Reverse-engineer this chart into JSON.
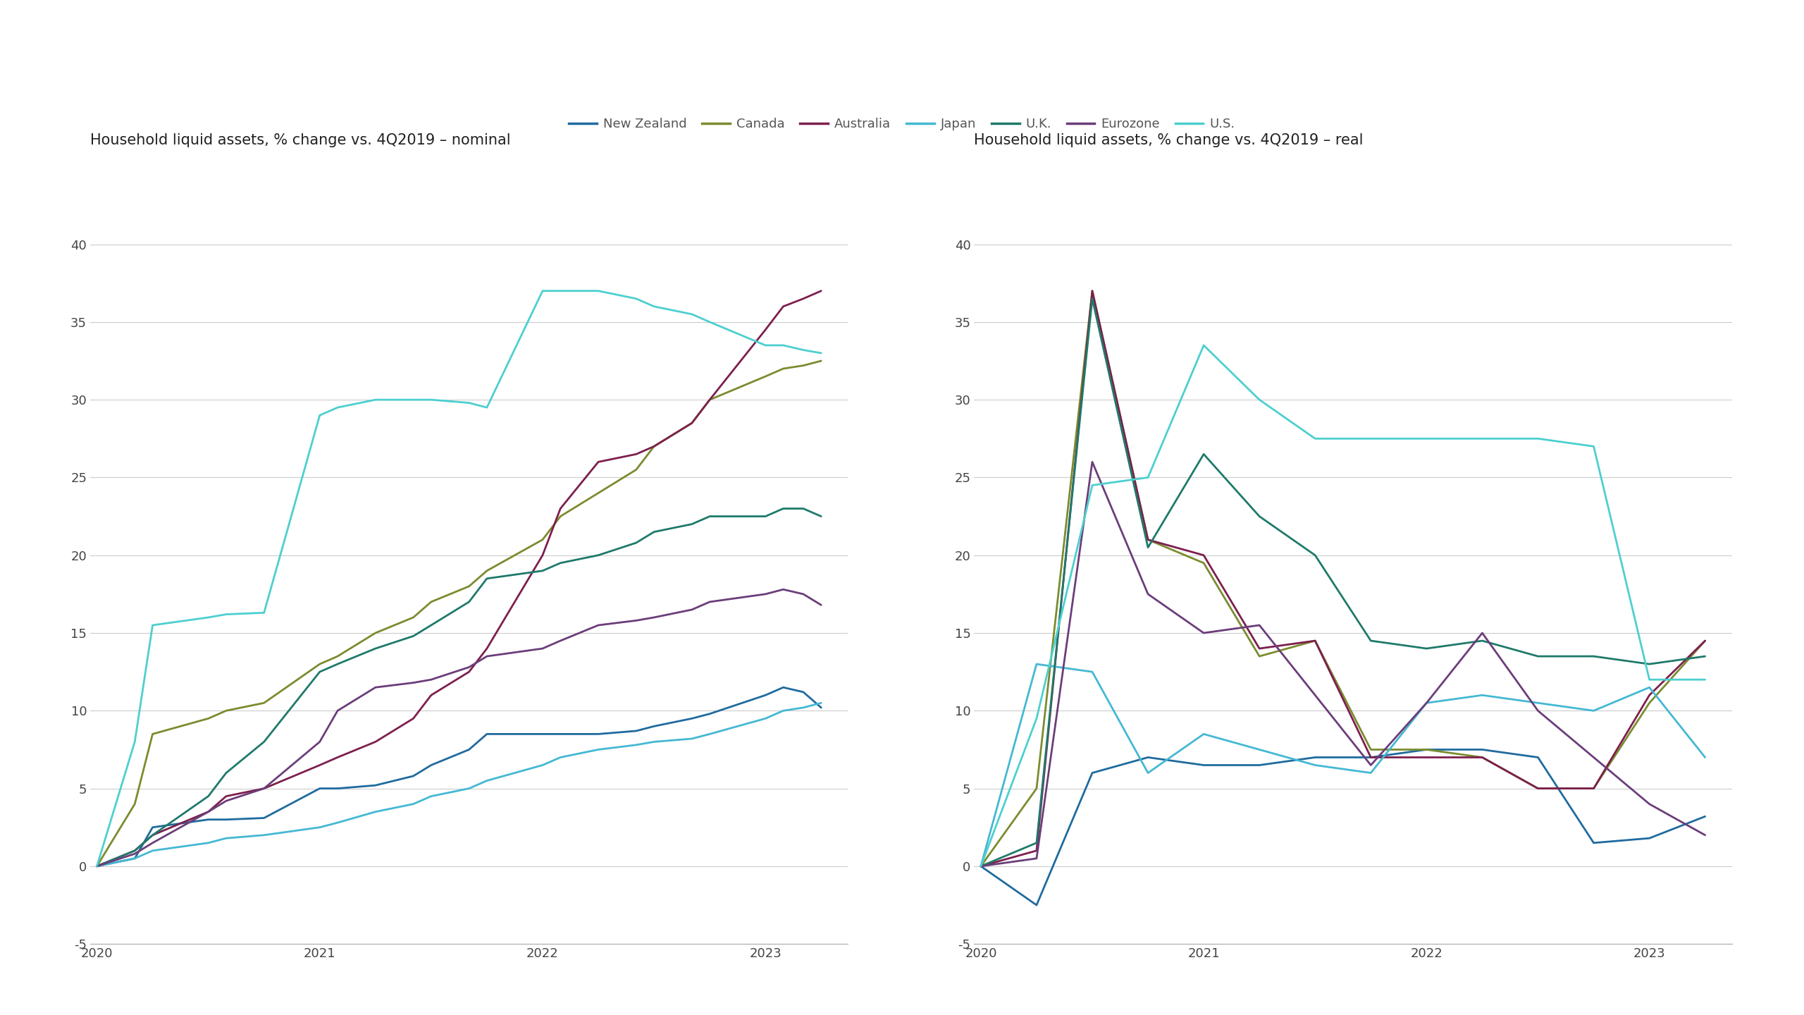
{
  "title_left": "Household liquid assets, % change vs. 4Q2019 – nominal",
  "title_right": "Household liquid assets, % change vs. 4Q2019 – real",
  "ylim": [
    -5,
    42
  ],
  "yticks": [
    -5,
    0,
    5,
    10,
    15,
    20,
    25,
    30,
    35,
    40
  ],
  "colors": {
    "New Zealand": "#1f6b9e",
    "Canada": "#7a8c2e",
    "Australia": "#7d1f4e",
    "Japan": "#44b8d4",
    "U.K.": "#1e7a6a",
    "Eurozone": "#6b3d7a",
    "U.S.": "#4dcfcf"
  },
  "legend_order": [
    "New Zealand",
    "Canada",
    "Australia",
    "Japan",
    "U.K.",
    "Eurozone",
    "U.S."
  ],
  "nominal": {
    "New Zealand": {
      "x": [
        2020.0,
        2020.17,
        2020.25,
        2020.5,
        2020.58,
        2020.75,
        2021.0,
        2021.08,
        2021.25,
        2021.42,
        2021.5,
        2021.67,
        2021.75,
        2022.0,
        2022.08,
        2022.25,
        2022.42,
        2022.5,
        2022.67,
        2022.75,
        2023.0,
        2023.08,
        2023.17,
        2023.25
      ],
      "y": [
        0,
        0.5,
        2.5,
        3.0,
        3.0,
        3.1,
        5.0,
        5.0,
        5.2,
        5.8,
        6.5,
        7.5,
        8.5,
        8.5,
        8.5,
        8.5,
        8.7,
        9.0,
        9.5,
        9.8,
        11.0,
        11.5,
        11.2,
        10.2
      ]
    },
    "Canada": {
      "x": [
        2020.0,
        2020.17,
        2020.25,
        2020.5,
        2020.58,
        2020.75,
        2021.0,
        2021.08,
        2021.25,
        2021.42,
        2021.5,
        2021.67,
        2021.75,
        2022.0,
        2022.08,
        2022.25,
        2022.42,
        2022.5,
        2022.67,
        2022.75,
        2023.0,
        2023.08,
        2023.17,
        2023.25
      ],
      "y": [
        0,
        4.0,
        8.5,
        9.5,
        10.0,
        10.5,
        13.0,
        13.5,
        15.0,
        16.0,
        17.0,
        18.0,
        19.0,
        21.0,
        22.5,
        24.0,
        25.5,
        27.0,
        28.5,
        30.0,
        31.5,
        32.0,
        32.2,
        32.5
      ]
    },
    "Australia": {
      "x": [
        2020.0,
        2020.17,
        2020.25,
        2020.5,
        2020.58,
        2020.75,
        2021.0,
        2021.08,
        2021.25,
        2021.42,
        2021.5,
        2021.67,
        2021.75,
        2022.0,
        2022.08,
        2022.25,
        2022.42,
        2022.5,
        2022.67,
        2022.75,
        2023.0,
        2023.08,
        2023.17,
        2023.25
      ],
      "y": [
        0,
        1.0,
        2.0,
        3.5,
        4.5,
        5.0,
        6.5,
        7.0,
        8.0,
        9.5,
        11.0,
        12.5,
        14.0,
        20.0,
        23.0,
        26.0,
        26.5,
        27.0,
        28.5,
        30.0,
        34.5,
        36.0,
        36.5,
        37.0
      ]
    },
    "Japan": {
      "x": [
        2020.0,
        2020.17,
        2020.25,
        2020.5,
        2020.58,
        2020.75,
        2021.0,
        2021.08,
        2021.25,
        2021.42,
        2021.5,
        2021.67,
        2021.75,
        2022.0,
        2022.08,
        2022.25,
        2022.42,
        2022.5,
        2022.67,
        2022.75,
        2023.0,
        2023.08,
        2023.17,
        2023.25
      ],
      "y": [
        0,
        0.5,
        1.0,
        1.5,
        1.8,
        2.0,
        2.5,
        2.8,
        3.5,
        4.0,
        4.5,
        5.0,
        5.5,
        6.5,
        7.0,
        7.5,
        7.8,
        8.0,
        8.2,
        8.5,
        9.5,
        10.0,
        10.2,
        10.5
      ]
    },
    "U.K.": {
      "x": [
        2020.0,
        2020.17,
        2020.25,
        2020.5,
        2020.58,
        2020.75,
        2021.0,
        2021.08,
        2021.25,
        2021.42,
        2021.5,
        2021.67,
        2021.75,
        2022.0,
        2022.08,
        2022.25,
        2022.42,
        2022.5,
        2022.67,
        2022.75,
        2023.0,
        2023.08,
        2023.17,
        2023.25
      ],
      "y": [
        0,
        1.0,
        2.0,
        4.5,
        6.0,
        8.0,
        12.5,
        13.0,
        14.0,
        14.8,
        15.5,
        17.0,
        18.5,
        19.0,
        19.5,
        20.0,
        20.8,
        21.5,
        22.0,
        22.5,
        22.5,
        23.0,
        23.0,
        22.5
      ]
    },
    "Eurozone": {
      "x": [
        2020.0,
        2020.17,
        2020.25,
        2020.5,
        2020.58,
        2020.75,
        2021.0,
        2021.08,
        2021.25,
        2021.42,
        2021.5,
        2021.67,
        2021.75,
        2022.0,
        2022.08,
        2022.25,
        2022.42,
        2022.5,
        2022.67,
        2022.75,
        2023.0,
        2023.08,
        2023.17,
        2023.25
      ],
      "y": [
        0,
        0.8,
        1.5,
        3.5,
        4.2,
        5.0,
        8.0,
        10.0,
        11.5,
        11.8,
        12.0,
        12.8,
        13.5,
        14.0,
        14.5,
        15.5,
        15.8,
        16.0,
        16.5,
        17.0,
        17.5,
        17.8,
        17.5,
        16.8
      ]
    },
    "U.S.": {
      "x": [
        2020.0,
        2020.17,
        2020.25,
        2020.5,
        2020.58,
        2020.75,
        2021.0,
        2021.08,
        2021.25,
        2021.42,
        2021.5,
        2021.67,
        2021.75,
        2022.0,
        2022.08,
        2022.25,
        2022.42,
        2022.5,
        2022.67,
        2022.75,
        2023.0,
        2023.08,
        2023.17,
        2023.25
      ],
      "y": [
        0,
        8.0,
        15.5,
        16.0,
        16.2,
        16.3,
        29.0,
        29.5,
        30.0,
        30.0,
        30.0,
        29.8,
        29.5,
        37.0,
        37.0,
        37.0,
        36.5,
        36.0,
        35.5,
        35.0,
        33.5,
        33.5,
        33.2,
        33.0
      ]
    }
  },
  "real": {
    "New Zealand": {
      "x": [
        2020.0,
        2020.25,
        2020.5,
        2020.75,
        2021.0,
        2021.25,
        2021.5,
        2021.75,
        2022.0,
        2022.25,
        2022.5,
        2022.75,
        2023.0,
        2023.25
      ],
      "y": [
        0,
        -2.5,
        6.0,
        7.0,
        6.5,
        6.5,
        7.0,
        7.0,
        7.5,
        7.5,
        7.0,
        1.5,
        1.8,
        3.2
      ]
    },
    "Canada": {
      "x": [
        2020.0,
        2020.25,
        2020.5,
        2020.75,
        2021.0,
        2021.25,
        2021.5,
        2021.75,
        2022.0,
        2022.25,
        2022.5,
        2022.75,
        2023.0,
        2023.25
      ],
      "y": [
        0,
        5.0,
        37.0,
        21.0,
        19.5,
        13.5,
        14.5,
        7.5,
        7.5,
        7.0,
        5.0,
        5.0,
        10.5,
        14.5
      ]
    },
    "Australia": {
      "x": [
        2020.0,
        2020.25,
        2020.5,
        2020.75,
        2021.0,
        2021.25,
        2021.5,
        2021.75,
        2022.0,
        2022.25,
        2022.5,
        2022.75,
        2023.0,
        2023.25
      ],
      "y": [
        0,
        1.0,
        37.0,
        21.0,
        20.0,
        14.0,
        14.5,
        7.0,
        7.0,
        7.0,
        5.0,
        5.0,
        11.0,
        14.5
      ]
    },
    "Japan": {
      "x": [
        2020.0,
        2020.25,
        2020.5,
        2020.75,
        2021.0,
        2021.25,
        2021.5,
        2021.75,
        2022.0,
        2022.25,
        2022.5,
        2022.75,
        2023.0,
        2023.25
      ],
      "y": [
        0,
        13.0,
        12.5,
        6.0,
        8.5,
        7.5,
        6.5,
        6.0,
        10.5,
        11.0,
        10.5,
        10.0,
        11.5,
        7.0
      ]
    },
    "U.K.": {
      "x": [
        2020.0,
        2020.25,
        2020.5,
        2020.75,
        2021.0,
        2021.25,
        2021.5,
        2021.75,
        2022.0,
        2022.25,
        2022.5,
        2022.75,
        2023.0,
        2023.25
      ],
      "y": [
        0,
        1.5,
        36.5,
        20.5,
        26.5,
        22.5,
        20.0,
        14.5,
        14.0,
        14.5,
        13.5,
        13.5,
        13.0,
        13.5
      ]
    },
    "Eurozone": {
      "x": [
        2020.0,
        2020.25,
        2020.5,
        2020.75,
        2021.0,
        2021.25,
        2021.5,
        2021.75,
        2022.0,
        2022.25,
        2022.5,
        2022.75,
        2023.0,
        2023.25
      ],
      "y": [
        0,
        0.5,
        26.0,
        17.5,
        15.0,
        15.5,
        11.0,
        6.5,
        10.5,
        15.0,
        10.0,
        7.0,
        4.0,
        2.0
      ]
    },
    "U.S.": {
      "x": [
        2020.0,
        2020.25,
        2020.5,
        2020.75,
        2021.0,
        2021.25,
        2021.5,
        2021.75,
        2022.0,
        2022.25,
        2022.5,
        2022.75,
        2023.0,
        2023.25
      ],
      "y": [
        0,
        9.5,
        24.5,
        25.0,
        33.5,
        30.0,
        27.5,
        27.5,
        27.5,
        27.5,
        27.5,
        27.0,
        12.0,
        12.0
      ]
    }
  },
  "background_color": "#ffffff",
  "line_width": 2.0,
  "title_fontsize": 15,
  "tick_fontsize": 13,
  "legend_fontsize": 13
}
